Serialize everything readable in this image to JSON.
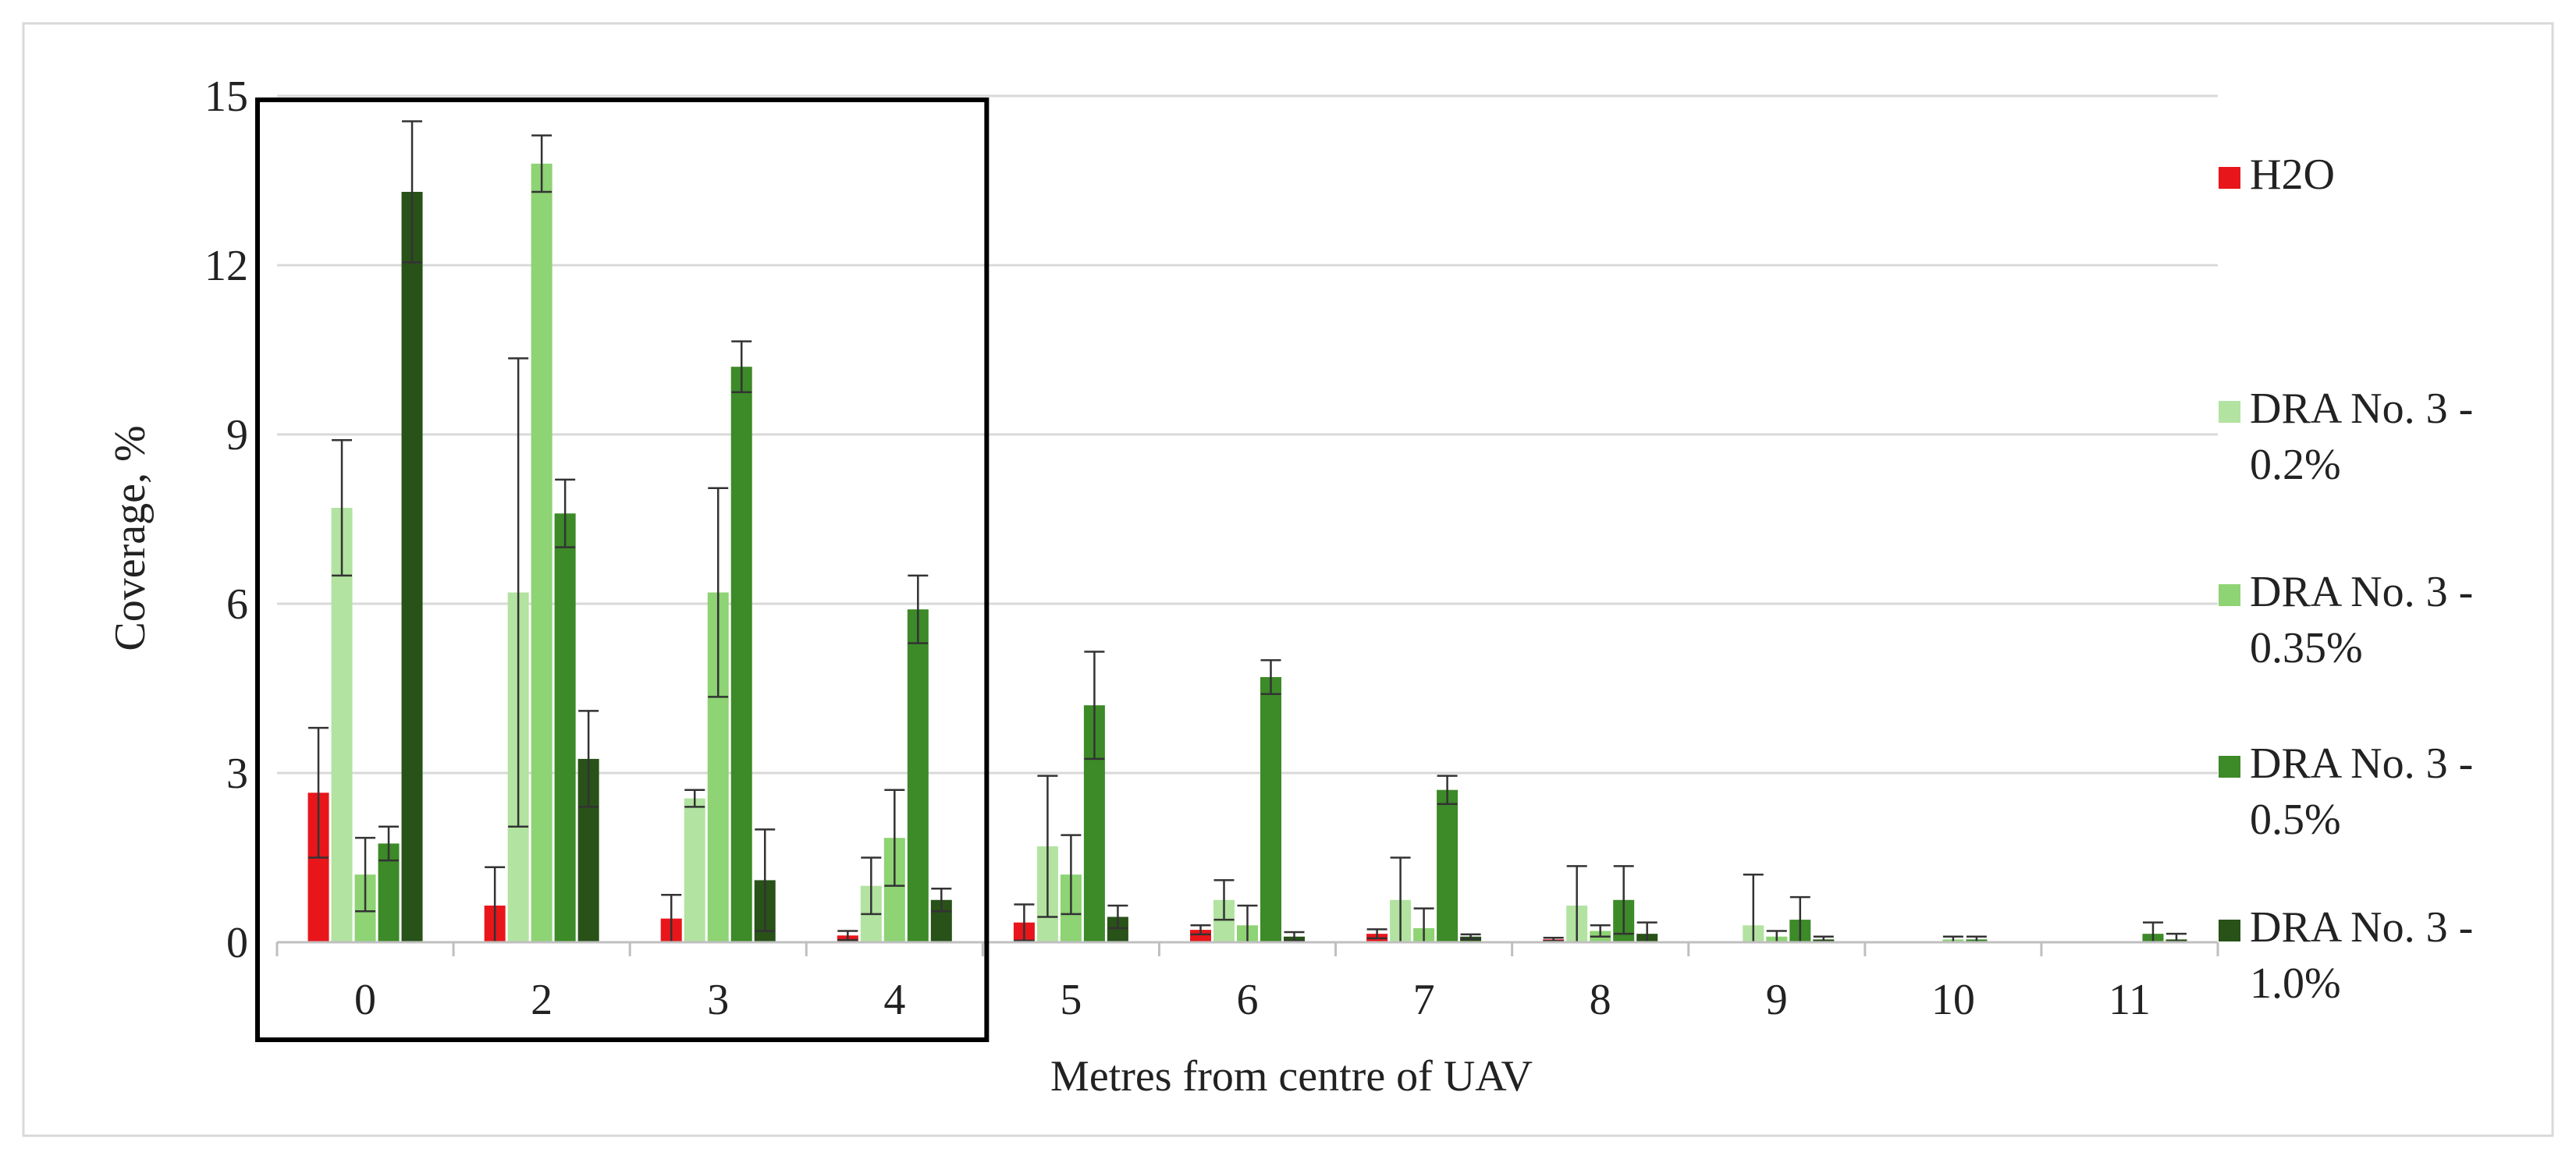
{
  "chart_data": {
    "type": "bar",
    "title": "",
    "xlabel": "Metres from centre of UAV",
    "ylabel": "Coverage, %",
    "ylim": [
      0,
      15
    ],
    "yticks": [
      "0",
      "3",
      "6",
      "9",
      "12",
      "15"
    ],
    "categories": [
      "0",
      "2",
      "3",
      "4",
      "5",
      "6",
      "7",
      "8",
      "9",
      "10",
      "11"
    ],
    "grid": true,
    "legend_position": "right",
    "highlight_box": {
      "from_category": "0",
      "to_category": "4"
    },
    "series": [
      {
        "name": "H2O",
        "color": "#e8161b",
        "values": [
          2.65,
          0.65,
          0.42,
          0.12,
          0.35,
          0.22,
          0.15,
          0.05,
          0.0,
          0.0,
          0.0
        ],
        "errors": [
          1.15,
          0.68,
          0.42,
          0.08,
          0.32,
          0.08,
          0.08,
          0.03,
          0.0,
          0.0,
          0.0
        ]
      },
      {
        "name": "DRA No. 3 - 0.2%",
        "color": "#b2e3a0",
        "values": [
          7.7,
          6.2,
          2.55,
          1.0,
          1.7,
          0.75,
          0.75,
          0.65,
          0.3,
          0.0,
          0.0
        ],
        "errors": [
          1.2,
          4.15,
          0.15,
          0.5,
          1.25,
          0.35,
          0.75,
          0.7,
          0.9,
          0.0,
          0.0
        ]
      },
      {
        "name": "DRA No. 3 - 0.35%",
        "color": "#8ed374",
        "values": [
          1.2,
          13.8,
          6.2,
          1.85,
          1.2,
          0.3,
          0.25,
          0.2,
          0.1,
          0.05,
          0.0
        ],
        "errors": [
          0.65,
          0.5,
          1.85,
          0.85,
          0.7,
          0.35,
          0.35,
          0.1,
          0.1,
          0.05,
          0.0
        ]
      },
      {
        "name": "DRA No. 3 - 0.5%",
        "color": "#3d8a28",
        "values": [
          1.75,
          7.6,
          10.2,
          5.9,
          4.2,
          4.7,
          2.7,
          0.75,
          0.4,
          0.05,
          0.15
        ],
        "errors": [
          0.3,
          0.6,
          0.45,
          0.6,
          0.95,
          0.3,
          0.25,
          0.6,
          0.4,
          0.05,
          0.2
        ]
      },
      {
        "name": "DRA No. 3 - 1.0%",
        "color": "#285218",
        "values": [
          13.3,
          3.25,
          1.1,
          0.75,
          0.45,
          0.1,
          0.1,
          0.15,
          0.05,
          0.0,
          0.05
        ],
        "errors": [
          1.25,
          0.85,
          0.9,
          0.2,
          0.2,
          0.08,
          0.04,
          0.2,
          0.05,
          0.0,
          0.1
        ]
      }
    ]
  }
}
